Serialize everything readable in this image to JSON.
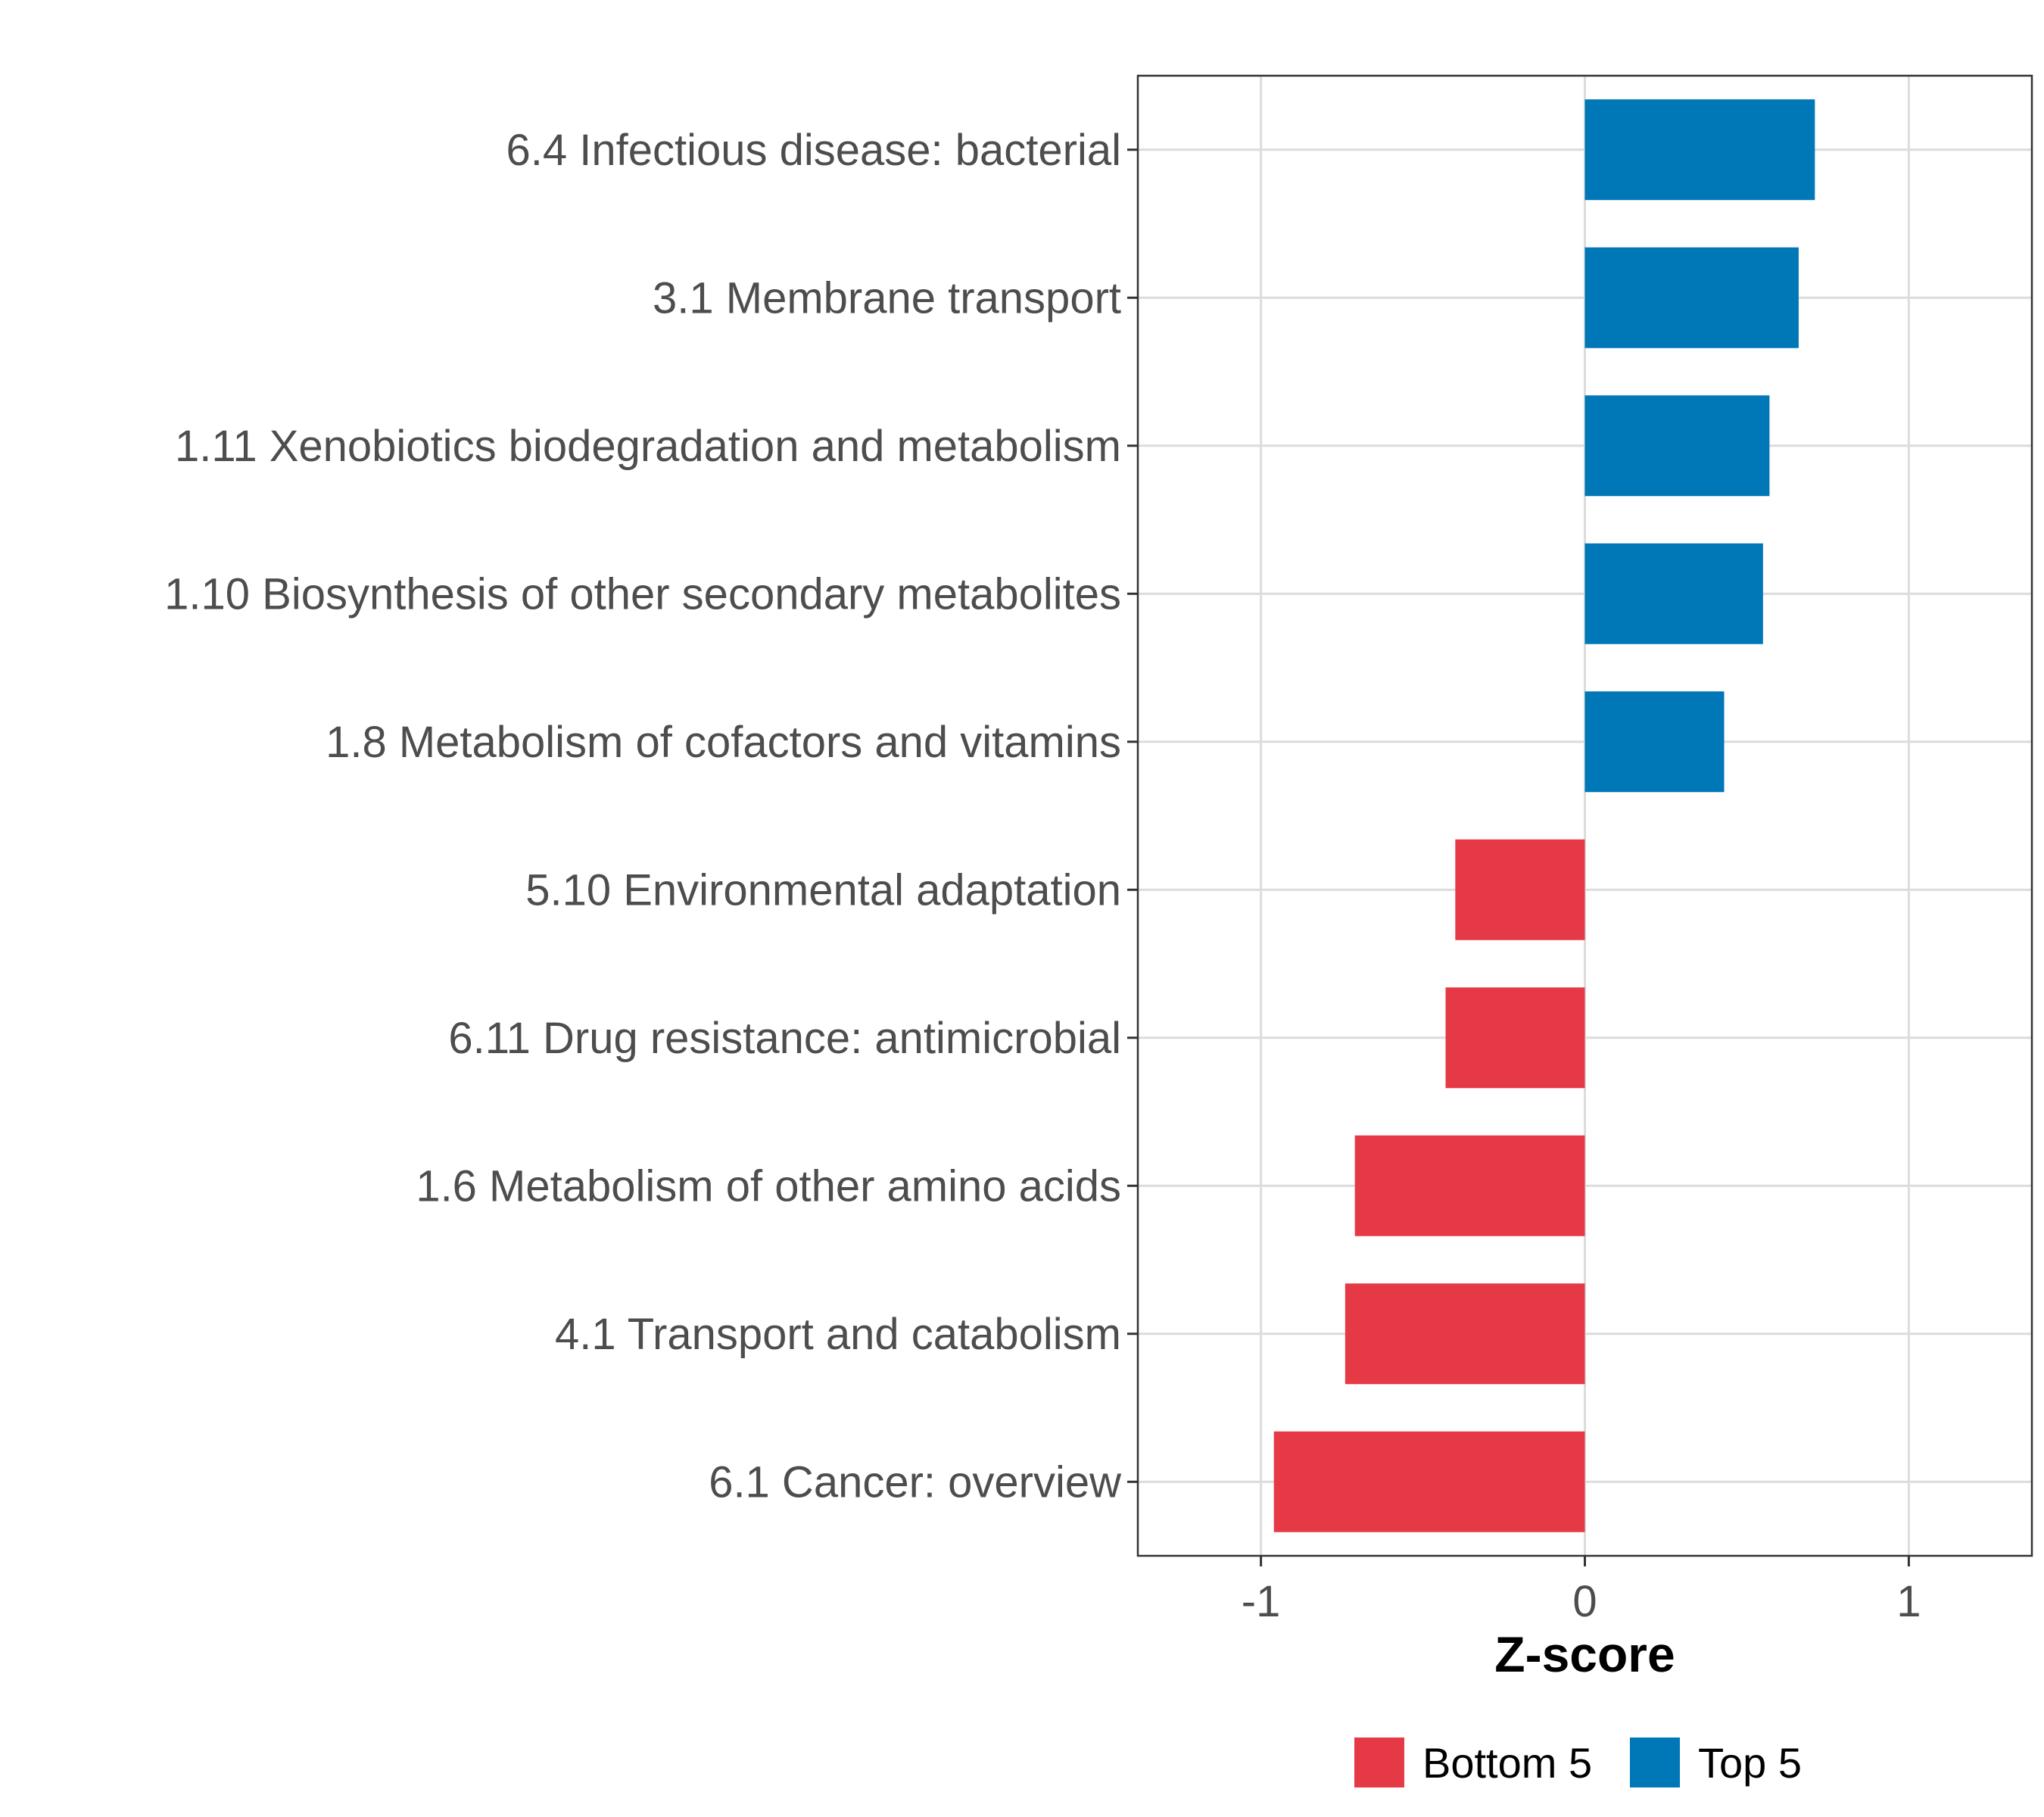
{
  "chart_data": {
    "type": "bar",
    "orientation": "horizontal",
    "categories": [
      "6.4 Infectious disease: bacterial",
      "3.1 Membrane transport",
      "1.11 Xenobiotics biodegradation and metabolism",
      "1.10 Biosynthesis of other secondary metabolites",
      "1.8 Metabolism of cofactors and vitamins",
      "5.10 Environmental adaptation",
      "6.11 Drug resistance: antimicrobial",
      "1.6 Metabolism of other amino acids",
      "4.1 Transport and catabolism",
      "6.1 Cancer: overview"
    ],
    "values": [
      0.71,
      0.66,
      0.57,
      0.55,
      0.43,
      -0.4,
      -0.43,
      -0.71,
      -0.74,
      -0.96
    ],
    "groups": [
      "Top 5",
      "Top 5",
      "Top 5",
      "Top 5",
      "Top 5",
      "Bottom 5",
      "Bottom 5",
      "Bottom 5",
      "Bottom 5",
      "Bottom 5"
    ],
    "xlabel": "Z-score",
    "xlim": [
      -1.38,
      1.38
    ],
    "xticks": [
      -1,
      0,
      1
    ],
    "grid": true,
    "legend": {
      "position": "bottom",
      "entries": [
        {
          "label": "Bottom 5",
          "color": "#E63946"
        },
        {
          "label": "Top 5",
          "color": "#0077B6"
        }
      ]
    }
  }
}
